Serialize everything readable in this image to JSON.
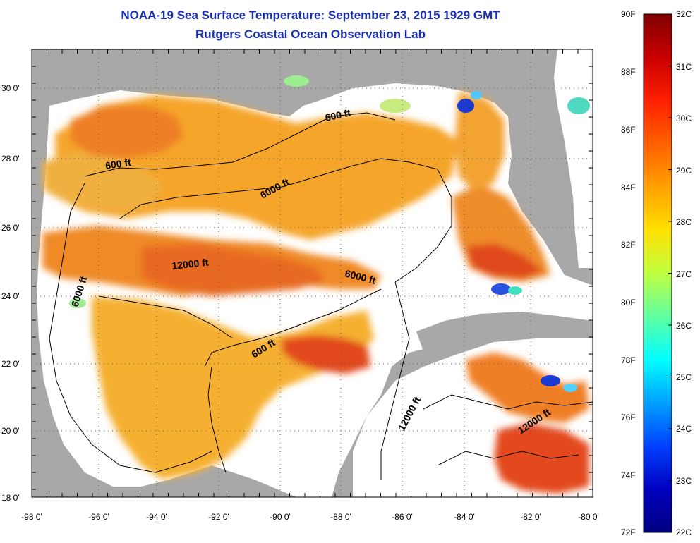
{
  "title": "NOAA-19 Sea Surface Temperature:  September 23, 2015 1929 GMT",
  "subtitle": "Rutgers Coastal Ocean Observation Lab",
  "lat_labels": [
    "30 0'",
    "28 0'",
    "26 0'",
    "24 0'",
    "22 0'",
    "20 0'",
    "18 0'"
  ],
  "lon_labels": [
    "-98 0'",
    "-96 0'",
    "-94 0'",
    "-92 0'",
    "-90 0'",
    "-88 0'",
    "-86 0'",
    "-84 0'",
    "-82 0'",
    "-80 0'"
  ],
  "contour_labels": {
    "c600_nw": "600 ft",
    "c600_ne": "600 ft",
    "c600_s": "600 ft",
    "c6000_n": "6000 ft",
    "c6000_w": "6000 ft",
    "c6000_e": "6000 ft",
    "c12000_c": "12000 ft",
    "c12000_s": "12000 ft",
    "c12000_se": "12000 ft"
  },
  "colorbar": {
    "fahrenheit": [
      "90F",
      "88F",
      "86F",
      "84F",
      "82F",
      "80F",
      "78F",
      "76F",
      "74F",
      "72F"
    ],
    "celsius": [
      "32C",
      "31C",
      "30C",
      "29C",
      "28C",
      "27C",
      "26C",
      "25C",
      "24C",
      "23C",
      "22C"
    ],
    "colors": [
      "#800000",
      "#c80000",
      "#ff2000",
      "#ff6000",
      "#ffa000",
      "#ffe000",
      "#c0ff40",
      "#60ffa0",
      "#00ffff",
      "#00a0ff",
      "#0040ff",
      "#0000c0",
      "#000080"
    ]
  },
  "colors": {
    "land": "#a8a8a8",
    "no_data": "#ffffff",
    "title": "#1a2fb0"
  }
}
